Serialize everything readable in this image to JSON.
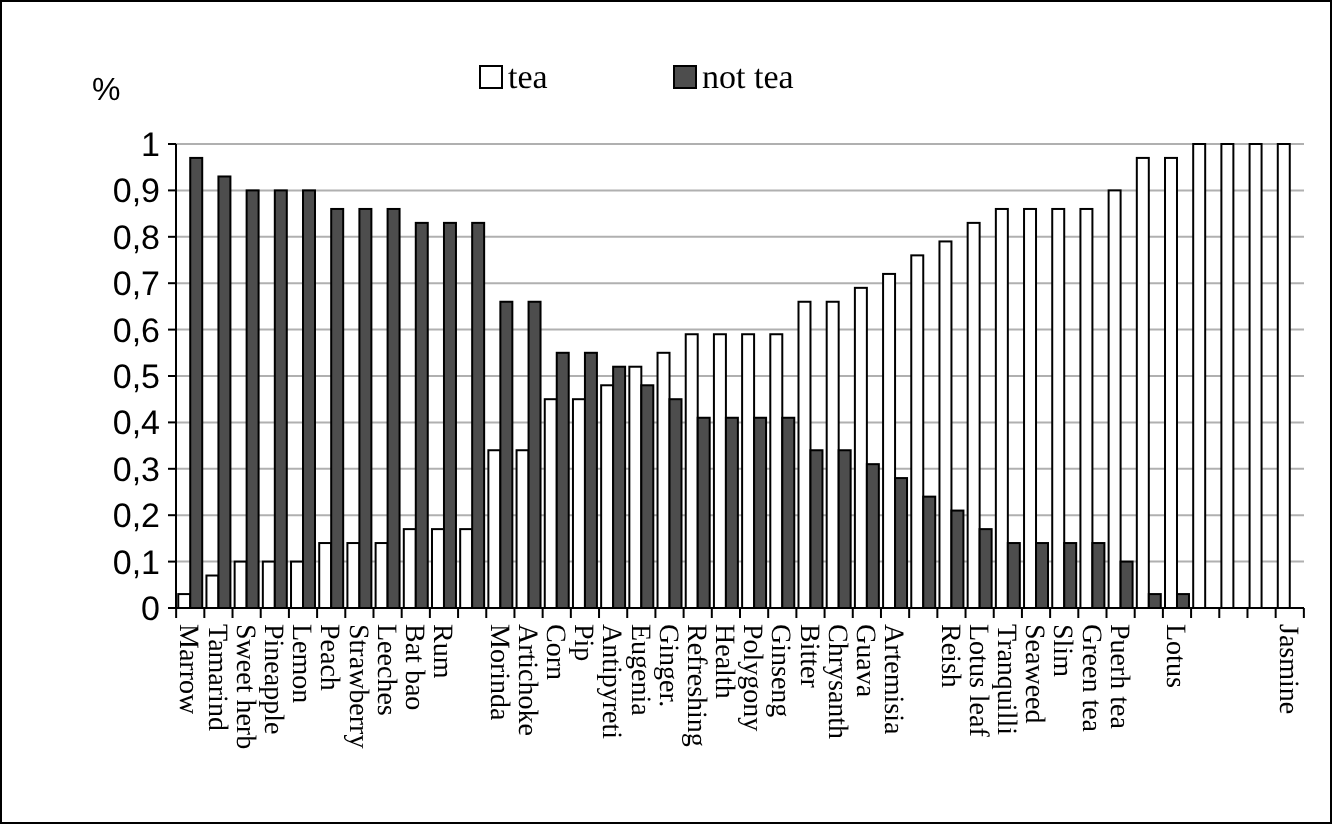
{
  "chart_data": {
    "type": "bar",
    "ylabel": "%",
    "categories": [
      "Marrow",
      "Tamarind",
      "Sweet herb",
      "Pineapple",
      "Lemon",
      "Peach",
      "Strawberry",
      "Leeches",
      "Bat bao",
      "Rum",
      null,
      "Morinda",
      "Artichoke",
      "Corn",
      "Pip",
      "Antipyreti",
      "Eugenia",
      "Ginger.",
      "Refreshing",
      "Health",
      "Polygony",
      "Ginseng",
      "Bitter",
      "Chrysanth",
      "Guava",
      "Artemisia",
      null,
      "Reish",
      "Lotus leaf",
      "Tranquilli",
      "Seaweed",
      "Slim",
      "Green tea",
      "Puerh tea",
      null,
      "Lotus",
      null,
      null,
      null,
      "Jasmine"
    ],
    "series": [
      {
        "name": "tea",
        "color": "#ffffff",
        "values": [
          0.03,
          0.07,
          0.1,
          0.1,
          0.1,
          0.14,
          0.14,
          0.14,
          0.17,
          0.17,
          0.17,
          0.34,
          0.34,
          0.45,
          0.45,
          0.48,
          0.52,
          0.55,
          0.59,
          0.59,
          0.59,
          0.59,
          0.66,
          0.66,
          0.69,
          0.72,
          0.76,
          0.79,
          0.83,
          0.86,
          0.86,
          0.86,
          0.86,
          0.9,
          0.97,
          0.97,
          1,
          1,
          1,
          1
        ]
      },
      {
        "name": "not tea",
        "color": "#4d4d4d",
        "values": [
          0.97,
          0.93,
          0.9,
          0.9,
          0.9,
          0.86,
          0.86,
          0.86,
          0.83,
          0.83,
          0.83,
          0.66,
          0.66,
          0.55,
          0.55,
          0.52,
          0.48,
          0.45,
          0.41,
          0.41,
          0.41,
          0.41,
          0.34,
          0.34,
          0.31,
          0.28,
          0.24,
          0.21,
          0.17,
          0.14,
          0.14,
          0.14,
          0.14,
          0.1,
          0.03,
          0.03,
          0,
          0,
          0,
          0
        ]
      }
    ],
    "ylim": [
      0,
      1
    ],
    "yticks": [
      0,
      {
        "value": 0.1,
        "label": "0,1"
      },
      {
        "value": 0.2,
        "label": "0,2"
      },
      {
        "value": 0.3,
        "label": "0,3"
      },
      {
        "value": 0.4,
        "label": "0,4"
      },
      {
        "value": 0.5,
        "label": "0,5"
      },
      {
        "value": 0.6,
        "label": "0,6"
      },
      {
        "value": 0.7,
        "label": "0,7"
      },
      {
        "value": 0.8,
        "label": "0,8"
      },
      {
        "value": 0.9,
        "label": "0,9"
      },
      1
    ],
    "grid": "y",
    "legend": "top"
  }
}
